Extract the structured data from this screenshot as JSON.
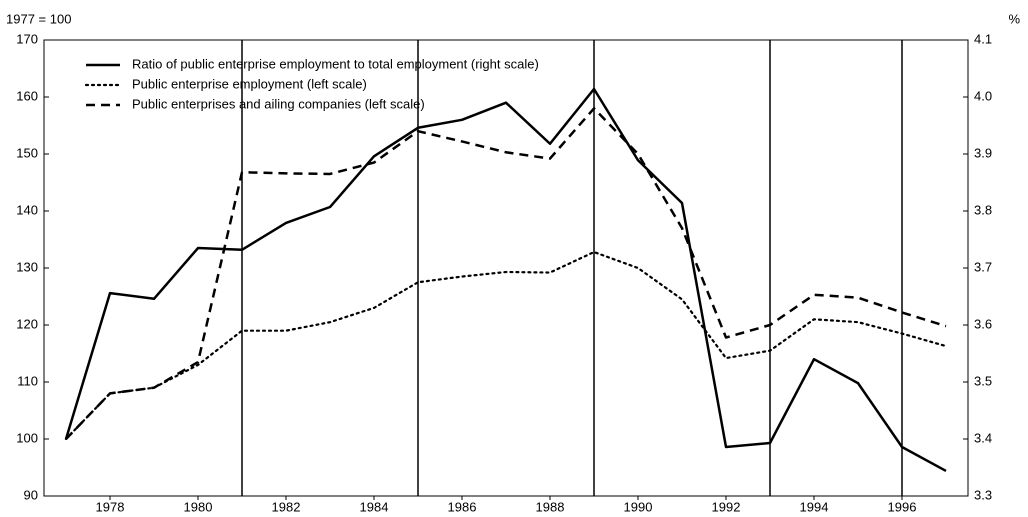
{
  "chart_data": {
    "type": "line",
    "y_label": "1977 = 100",
    "y2_label": "%",
    "x": [
      1977,
      1978,
      1979,
      1980,
      1981,
      1982,
      1983,
      1984,
      1985,
      1986,
      1987,
      1988,
      1989,
      1990,
      1991,
      1992,
      1993,
      1994,
      1995,
      1996,
      1997
    ],
    "xlim": [
      1976.5,
      1997.5
    ],
    "xticks": [
      1978,
      1980,
      1982,
      1984,
      1986,
      1988,
      1990,
      1992,
      1994,
      1996
    ],
    "ylim": [
      90,
      170
    ],
    "yticks": [
      90,
      100,
      110,
      120,
      130,
      140,
      150,
      160,
      170
    ],
    "y2lim": [
      3.3,
      4.1
    ],
    "y2ticks": [
      3.3,
      3.4,
      3.5,
      3.6,
      3.7,
      3.8,
      3.9,
      {
        "value": 4.0,
        "label": "4.0"
      },
      4.1
    ],
    "vlines": [
      1981,
      1985,
      1989,
      1993,
      1996
    ],
    "legend": "upper left",
    "series": [
      {
        "name": "Ratio of public enterprise employment to total employment (right scale)",
        "color": "#000000",
        "style": "solid",
        "axis": "y2",
        "values": [
          3.4,
          3.656,
          3.646,
          3.735,
          3.732,
          3.779,
          3.807,
          3.896,
          3.946,
          3.96,
          3.99,
          3.918,
          4.014,
          3.889,
          3.814,
          3.386,
          3.393,
          3.54,
          3.498,
          3.386,
          3.344
        ]
      },
      {
        "name": "Public enterprise employment (left scale)",
        "color": "#000000",
        "style": "dotted",
        "values": [
          100,
          108,
          109,
          113,
          119,
          119,
          120.5,
          123,
          127.5,
          128.5,
          129.3,
          129.2,
          132.8,
          130,
          124.5,
          114.2,
          115.5,
          121,
          120.5,
          118.5,
          116.3
        ]
      },
      {
        "name": "Public enterprises and ailing companies (left scale)",
        "color": "#000000",
        "style": "dashed",
        "values": [
          100,
          108,
          109,
          113.5,
          146.8,
          146.6,
          146.5,
          148.5,
          154,
          152.2,
          150.3,
          149.2,
          158,
          150,
          137,
          117.8,
          120,
          125.3,
          124.8,
          122.2,
          119.8
        ]
      }
    ]
  }
}
